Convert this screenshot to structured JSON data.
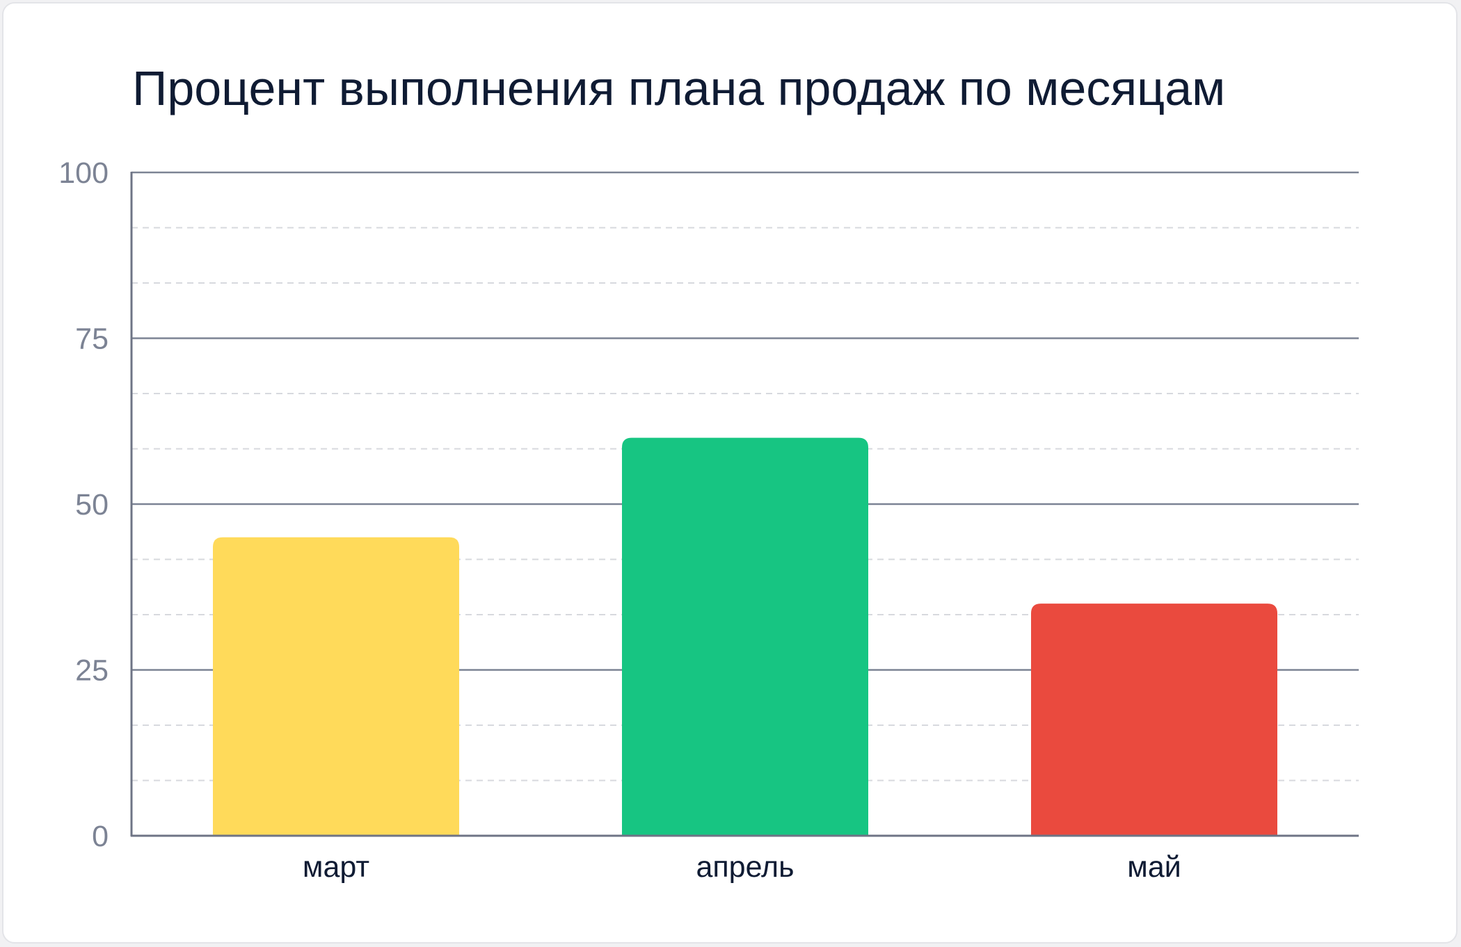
{
  "chart_data": {
    "type": "bar",
    "title": "Процент выполнения плана продаж по месяцам",
    "xlabel": "",
    "ylabel": "",
    "categories": [
      "март",
      "апрель",
      "май"
    ],
    "values": [
      45,
      60,
      35
    ],
    "colors": [
      "#ffda5a",
      "#17c582",
      "#ea4a3e"
    ],
    "ylim": [
      0,
      100
    ],
    "yticks": [
      0,
      25,
      50,
      75,
      100
    ],
    "ytick_labels": [
      "0",
      "25",
      "50",
      "75",
      "100"
    ],
    "minor_gridlines_per_major": 2,
    "grid": true,
    "legend": "none"
  }
}
